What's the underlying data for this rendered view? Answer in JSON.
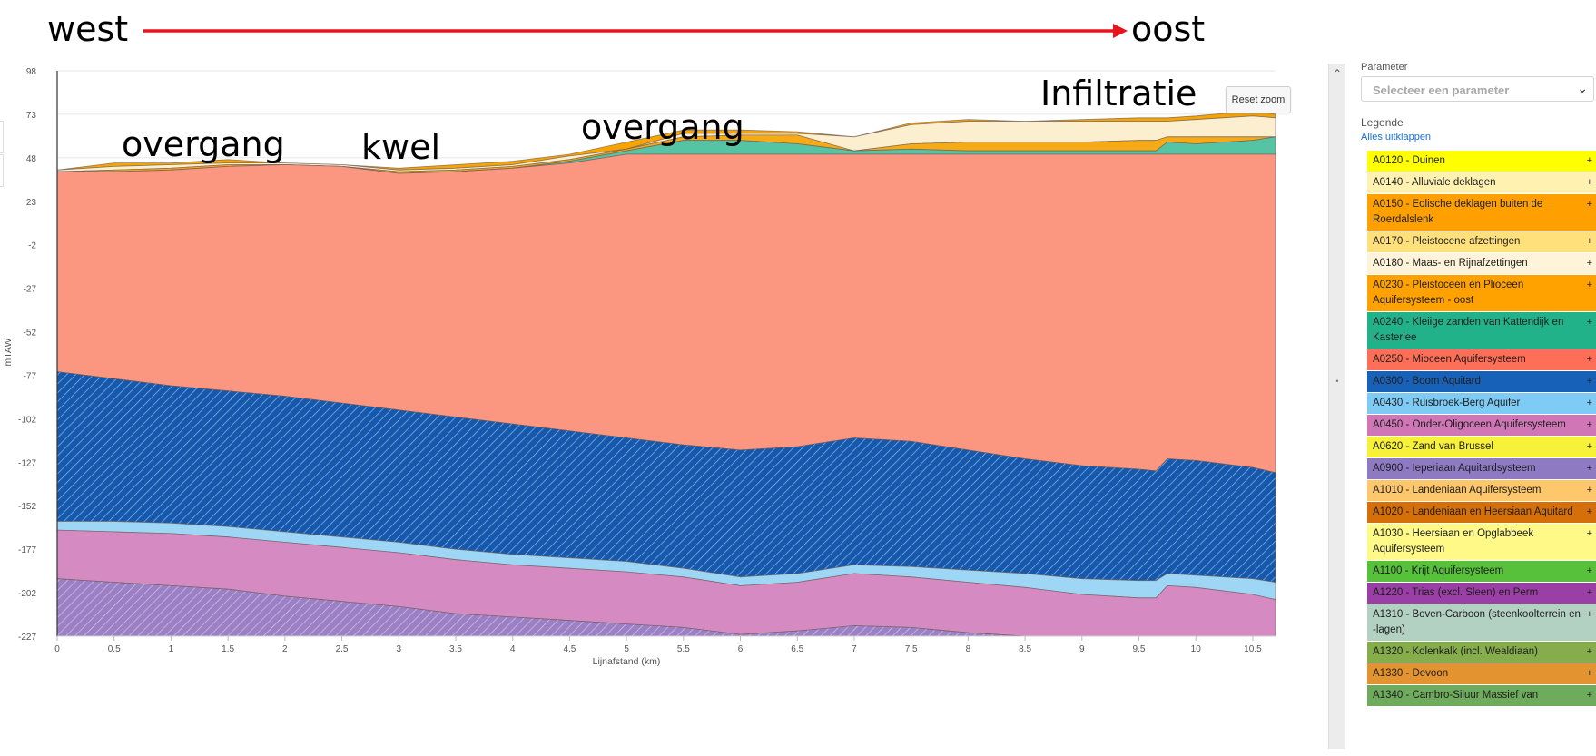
{
  "annotations": {
    "west": "west",
    "oost": "oost",
    "infiltratie": "Infiltratie",
    "overgang_left": "overgang",
    "kwel": "kwel",
    "overgang_mid": "overgang"
  },
  "colors": {
    "arrow": "#e8141b",
    "background": "#ffffff",
    "grid": "#e6e6e6",
    "link": "#1a6fd1"
  },
  "buttons": {
    "reset_zoom": "Reset zoom"
  },
  "chart_data": {
    "type": "area",
    "title": "",
    "xlabel": "Lijnafstand (km)",
    "ylabel": "mTAW",
    "xlim": [
      0,
      10.7
    ],
    "ylim": [
      -227,
      98
    ],
    "xticks": [
      0,
      0.5,
      1,
      1.5,
      2,
      2.5,
      3,
      3.5,
      4,
      4.5,
      5,
      5.5,
      6,
      6.5,
      7,
      7.5,
      8,
      8.5,
      9,
      9.5,
      10,
      10.5
    ],
    "yticks": [
      98,
      73,
      48,
      23,
      -2,
      -27,
      -52,
      -77,
      -102,
      -127,
      -152,
      -177,
      -202,
      -227
    ],
    "x": [
      0,
      0.5,
      1,
      1.5,
      2,
      2.5,
      3,
      3.5,
      4,
      4.5,
      5,
      5.5,
      6,
      6.5,
      7,
      7.5,
      8,
      8.5,
      9,
      9.5,
      9.65,
      9.75,
      10,
      10.5,
      10.7
    ],
    "bottom_boundary": -227,
    "boundaries": [
      {
        "name": "top",
        "values": [
          41,
          45,
          45,
          47,
          45,
          44,
          42,
          44,
          46,
          50,
          57,
          64,
          64,
          63,
          60,
          68,
          70,
          69,
          70,
          71,
          71,
          71,
          72,
          75,
          73
        ]
      },
      {
        "name": "top_A0180",
        "values": [
          41,
          43,
          44,
          45,
          45,
          44,
          41,
          42,
          44,
          49,
          53,
          62,
          62,
          62,
          60,
          67,
          69,
          69,
          69,
          69,
          69,
          69,
          70,
          72,
          71
        ]
      },
      {
        "name": "top_A0230",
        "values": [
          40,
          41,
          42,
          44,
          44,
          43,
          40,
          41,
          43,
          47,
          53,
          60,
          61,
          61,
          52,
          56,
          57,
          57,
          57,
          58,
          58,
          60,
          60,
          60,
          60
        ]
      },
      {
        "name": "top_A0240",
        "values": [
          40,
          40,
          41,
          43,
          44,
          43,
          39,
          40,
          42,
          46,
          52,
          58,
          58,
          56,
          52,
          53,
          52,
          52,
          52,
          52,
          52,
          57,
          56,
          58,
          60
        ]
      },
      {
        "name": "top_A0250",
        "values": [
          40,
          40,
          41,
          43,
          44,
          43,
          39,
          40,
          42,
          45,
          50,
          50,
          50,
          50,
          50,
          50,
          50,
          50,
          50,
          50,
          50,
          50,
          50,
          50,
          50
        ]
      },
      {
        "name": "top_A0300",
        "values": [
          -75,
          -79,
          -83,
          -86,
          -89,
          -93,
          -97,
          -101,
          -105,
          -109,
          -113,
          -117,
          -120,
          -118,
          -113,
          -115,
          -120,
          -125,
          -129,
          -131,
          -132,
          -125,
          -126,
          -130,
          -133
        ]
      },
      {
        "name": "top_A0430",
        "values": [
          -161,
          -161,
          -162,
          -164,
          -167,
          -170,
          -173,
          -177,
          -180,
          -182,
          -184,
          -188,
          -193,
          -191,
          -186,
          -187,
          -189,
          -191,
          -194,
          -195,
          -195,
          -191,
          -192,
          -194,
          -196
        ]
      },
      {
        "name": "top_A0450",
        "values": [
          -166,
          -167,
          -168,
          -170,
          -173,
          -176,
          -179,
          -183,
          -186,
          -188,
          -190,
          -193,
          -198,
          -196,
          -191,
          -193,
          -196,
          -199,
          -203,
          -205,
          -205,
          -198,
          -199,
          -203,
          -206
        ]
      },
      {
        "name": "top_A0900",
        "values": [
          -194,
          -196,
          -198,
          -200,
          -204,
          -207,
          -210,
          -214,
          -216,
          -218,
          -220,
          -222,
          -226,
          -224,
          -221,
          -222,
          -225,
          -227,
          -227,
          -227,
          -227,
          -227,
          -227,
          -227,
          -227
        ]
      }
    ],
    "layers": [
      {
        "code": "A0120",
        "name": "Duinen",
        "from": "top",
        "to": "top_A0180",
        "color": "#f5a400",
        "hatch": false
      },
      {
        "code": "A0180",
        "name": "Maas- en Rijnafzettingen",
        "from": "top_A0180",
        "to": "top_A0230",
        "color": "#fbefd0",
        "hatch": false
      },
      {
        "code": "A0230",
        "name": "Pleistoceen en Plioceen Aquifersysteem - oost",
        "from": "top_A0230",
        "to": "top_A0240",
        "color": "#f6aa16",
        "hatch": false
      },
      {
        "code": "A0240",
        "name": "Kleiige zanden van Kattendijk en Kasterlee",
        "from": "top_A0240",
        "to": "top_A0250",
        "color": "#56c4a4",
        "hatch": false
      },
      {
        "code": "A0250",
        "name": "Mioceen Aquifersysteem",
        "from": "top_A0250",
        "to": "top_A0300",
        "color": "#fb9680",
        "hatch": false
      },
      {
        "code": "A0300",
        "name": "Boom Aquitard",
        "from": "top_A0300",
        "to": "top_A0430",
        "color": "#1559ae",
        "hatch": true
      },
      {
        "code": "A0430",
        "name": "Ruisbroek-Berg Aquifer",
        "from": "top_A0430",
        "to": "top_A0450",
        "color": "#9ed7f5",
        "hatch": false
      },
      {
        "code": "A0450",
        "name": "Onder-Oligoceen Aquifersysteem",
        "from": "top_A0450",
        "to": "top_A0900",
        "color": "#d58ac1",
        "hatch": false
      },
      {
        "code": "A0900",
        "name": "Ieperiaan Aquitardsysteem",
        "from": "top_A0900",
        "to": "bottom_boundary",
        "color": "#9b80c6",
        "hatch": true
      }
    ]
  },
  "panel": {
    "parameter_label": "Parameter",
    "parameter_placeholder": "Selecteer een parameter",
    "legende_label": "Legende",
    "expand_all": "Alles uitklappen",
    "legend": [
      {
        "label": "A0120 - Duinen",
        "color": "#ffff00"
      },
      {
        "label": "A0140 - Alluviale deklagen",
        "color": "#fff2b0"
      },
      {
        "label": "A0150 - Eolische deklagen buiten de Roerdalslenk",
        "color": "#ffa000"
      },
      {
        "label": "A0170 - Pleistocene afzettingen",
        "color": "#ffe07a"
      },
      {
        "label": "A0180 - Maas- en Rijnafzettingen",
        "color": "#fff3da"
      },
      {
        "label": "A0230 - Pleistoceen en Plioceen Aquifersysteem - oost",
        "color": "#ffa200"
      },
      {
        "label": "A0240 - Kleiige zanden van Kattendijk en Kasterlee",
        "color": "#22b28a"
      },
      {
        "label": "A0250 - Mioceen Aquifersysteem",
        "color": "#ff6e57"
      },
      {
        "label": "A0300 - Boom Aquitard",
        "color": "#1762b8"
      },
      {
        "label": "A0430 - Ruisbroek-Berg Aquifer",
        "color": "#7ecbf5"
      },
      {
        "label": "A0450 - Onder-Oligoceen Aquifersysteem",
        "color": "#d076b6"
      },
      {
        "label": "A0620 - Zand van Brussel",
        "color": "#f7f13a"
      },
      {
        "label": "A0900 - Ieperiaan Aquitardsysteem",
        "color": "#8e79c3"
      },
      {
        "label": "A1010 - Landeniaan Aquifersysteem",
        "color": "#ffc76b"
      },
      {
        "label": "A1020 - Landeniaan en Heersiaan Aquitard",
        "color": "#d46f0a"
      },
      {
        "label": "A1030 - Heersiaan en Opglabbeek Aquifersysteem",
        "color": "#fffa88"
      },
      {
        "label": "A1100 - Krijt Aquifersysteem",
        "color": "#58c13c"
      },
      {
        "label": "A1220 - Trias (excl. Sleen) en Perm",
        "color": "#9a3fa6"
      },
      {
        "label": "A1310 - Boven-Carboon (steenkoolterrein en -lagen)",
        "color": "#b3d1c3"
      },
      {
        "label": "A1320 - Kolenkalk (incl. Wealdiaan)",
        "color": "#86ad4b"
      },
      {
        "label": "A1330 - Devoon",
        "color": "#e3932f"
      },
      {
        "label": "A1340 - Cambro-Siluur Massief van",
        "color": "#6fab5d"
      }
    ]
  }
}
